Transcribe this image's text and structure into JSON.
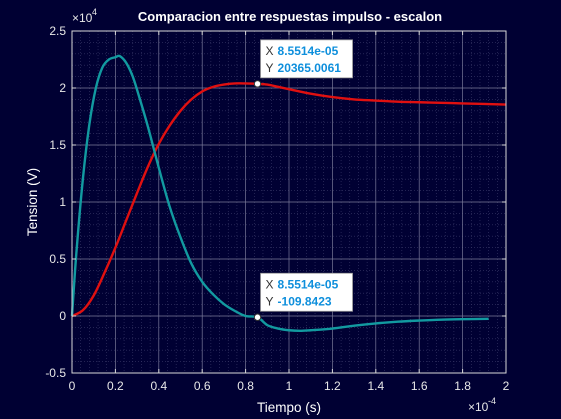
{
  "chart_data": {
    "type": "line",
    "title": "Comparacion entre respuestas impulso - escalon",
    "xlabel": "Tiempo (s)",
    "ylabel": "Tension (V)",
    "x_exponent_label": "×10",
    "x_exponent": "-4",
    "y_exponent_label": "×10",
    "y_exponent": "4",
    "xlim": [
      0,
      2
    ],
    "ylim": [
      -0.5,
      2.5
    ],
    "x_ticks": [
      "0",
      "0.2",
      "0.4",
      "0.6",
      "0.8",
      "1",
      "1.2",
      "1.4",
      "1.6",
      "1.8",
      "2"
    ],
    "y_ticks": [
      "-0.5",
      "0",
      "0.5",
      "1",
      "1.5",
      "2",
      "2.5"
    ],
    "grid": true,
    "minor_grid": true,
    "series": [
      {
        "color": "#e01010",
        "x": [
          0,
          0.05,
          0.1,
          0.15,
          0.2,
          0.25,
          0.3,
          0.35,
          0.4,
          0.45,
          0.5,
          0.55,
          0.6,
          0.65,
          0.7,
          0.75,
          0.8,
          0.855,
          0.9,
          0.95,
          1.0,
          1.1,
          1.2,
          1.3,
          1.4,
          1.5,
          1.6,
          1.7,
          1.8,
          1.9,
          2.0
        ],
        "y": [
          0,
          0.05,
          0.18,
          0.38,
          0.6,
          0.84,
          1.08,
          1.31,
          1.51,
          1.67,
          1.8,
          1.9,
          1.97,
          2.01,
          2.03,
          2.04,
          2.04,
          2.0365,
          2.03,
          2.01,
          1.99,
          1.95,
          1.92,
          1.9,
          1.89,
          1.88,
          1.875,
          1.87,
          1.865,
          1.86,
          1.855
        ]
      },
      {
        "color": "#129aa0",
        "x": [
          0,
          0.02,
          0.05,
          0.08,
          0.11,
          0.14,
          0.17,
          0.2,
          0.22,
          0.25,
          0.28,
          0.31,
          0.35,
          0.4,
          0.45,
          0.5,
          0.55,
          0.6,
          0.65,
          0.7,
          0.75,
          0.8,
          0.855,
          0.9,
          0.95,
          1.0,
          1.05,
          1.1,
          1.2,
          1.3,
          1.4,
          1.5,
          1.6,
          1.7,
          1.8,
          1.92
        ],
        "y": [
          0,
          0.55,
          1.2,
          1.68,
          2.0,
          2.18,
          2.25,
          2.27,
          2.28,
          2.22,
          2.1,
          1.92,
          1.66,
          1.3,
          0.96,
          0.69,
          0.46,
          0.3,
          0.19,
          0.105,
          0.045,
          0.0,
          -0.011,
          -0.08,
          -0.11,
          -0.125,
          -0.13,
          -0.125,
          -0.11,
          -0.085,
          -0.065,
          -0.05,
          -0.04,
          -0.032,
          -0.028,
          -0.025
        ]
      }
    ],
    "datatips": [
      {
        "x_label": "X",
        "x_value": "8.5514e-05",
        "y_label": "Y",
        "y_value": "20365.0061",
        "px": 0.855,
        "py": 2.0365
      },
      {
        "x_label": "X",
        "x_value": "8.5514e-05",
        "y_label": "Y",
        "y_value": "-109.8423",
        "px": 0.855,
        "py": -0.0109842
      }
    ]
  }
}
